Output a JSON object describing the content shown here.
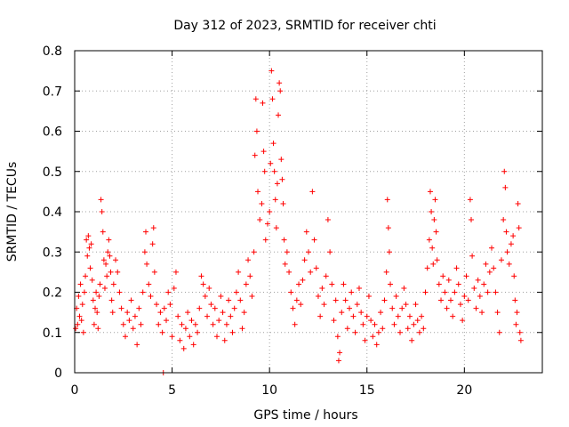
{
  "chart_data": {
    "type": "scatter",
    "title": "Day 312 of 2023, SRMTID for receiver chti",
    "xlabel": "GPS time / hours",
    "ylabel": "SRMTID / TECUs",
    "xlim": [
      0,
      24
    ],
    "ylim": [
      0,
      0.8
    ],
    "xticks": [
      0,
      5,
      10,
      15,
      20
    ],
    "xtick_labels": [
      "0",
      "5",
      "10",
      "15",
      "20"
    ],
    "yticks": [
      0,
      0.1,
      0.2,
      0.3,
      0.4,
      0.5,
      0.6,
      0.7,
      0.8
    ],
    "ytick_labels": [
      "0",
      "0.1",
      "0.2",
      "0.3",
      "0.4",
      "0.5",
      "0.6",
      "0.7",
      "0.8"
    ],
    "grid": true,
    "marker": "+",
    "color": "#ff0000",
    "series": [
      {
        "name": "SRMTID",
        "points": [
          [
            0.05,
            0.11
          ],
          [
            0.1,
            0.16
          ],
          [
            0.15,
            0.12
          ],
          [
            0.2,
            0.19
          ],
          [
            0.25,
            0.14
          ],
          [
            0.3,
            0.22
          ],
          [
            0.35,
            0.13
          ],
          [
            0.4,
            0.17
          ],
          [
            0.45,
            0.1
          ],
          [
            0.5,
            0.2
          ],
          [
            0.55,
            0.24
          ],
          [
            0.6,
            0.33
          ],
          [
            0.65,
            0.29
          ],
          [
            0.7,
            0.34
          ],
          [
            0.75,
            0.31
          ],
          [
            0.8,
            0.26
          ],
          [
            0.85,
            0.32
          ],
          [
            0.9,
            0.23
          ],
          [
            0.95,
            0.18
          ],
          [
            1.0,
            0.12
          ],
          [
            1.05,
            0.16
          ],
          [
            1.1,
            0.2
          ],
          [
            1.15,
            0.15
          ],
          [
            1.2,
            0.11
          ],
          [
            1.25,
            0.19
          ],
          [
            1.3,
            0.22
          ],
          [
            1.35,
            0.43
          ],
          [
            1.4,
            0.4
          ],
          [
            1.45,
            0.35
          ],
          [
            1.5,
            0.28
          ],
          [
            1.55,
            0.21
          ],
          [
            1.6,
            0.27
          ],
          [
            1.65,
            0.24
          ],
          [
            1.7,
            0.3
          ],
          [
            1.75,
            0.33
          ],
          [
            1.8,
            0.29
          ],
          [
            1.85,
            0.25
          ],
          [
            1.9,
            0.18
          ],
          [
            1.95,
            0.15
          ],
          [
            2.0,
            0.22
          ],
          [
            2.1,
            0.28
          ],
          [
            2.2,
            0.25
          ],
          [
            2.3,
            0.2
          ],
          [
            2.4,
            0.16
          ],
          [
            2.5,
            0.12
          ],
          [
            2.6,
            0.09
          ],
          [
            2.7,
            0.15
          ],
          [
            2.8,
            0.13
          ],
          [
            2.9,
            0.18
          ],
          [
            3.0,
            0.11
          ],
          [
            3.1,
            0.14
          ],
          [
            3.2,
            0.07
          ],
          [
            3.3,
            0.16
          ],
          [
            3.4,
            0.12
          ],
          [
            3.5,
            0.2
          ],
          [
            3.6,
            0.3
          ],
          [
            3.65,
            0.35
          ],
          [
            3.7,
            0.27
          ],
          [
            3.8,
            0.22
          ],
          [
            3.9,
            0.19
          ],
          [
            4.0,
            0.32
          ],
          [
            4.05,
            0.36
          ],
          [
            4.1,
            0.25
          ],
          [
            4.2,
            0.17
          ],
          [
            4.3,
            0.12
          ],
          [
            4.4,
            0.15
          ],
          [
            4.5,
            0.1
          ],
          [
            4.55,
            0.0
          ],
          [
            4.6,
            0.16
          ],
          [
            4.7,
            0.13
          ],
          [
            4.8,
            0.2
          ],
          [
            4.9,
            0.17
          ],
          [
            5.0,
            0.09
          ],
          [
            5.1,
            0.21
          ],
          [
            5.2,
            0.25
          ],
          [
            5.3,
            0.14
          ],
          [
            5.4,
            0.08
          ],
          [
            5.5,
            0.12
          ],
          [
            5.6,
            0.06
          ],
          [
            5.7,
            0.11
          ],
          [
            5.8,
            0.15
          ],
          [
            5.9,
            0.09
          ],
          [
            6.0,
            0.13
          ],
          [
            6.1,
            0.07
          ],
          [
            6.2,
            0.12
          ],
          [
            6.3,
            0.1
          ],
          [
            6.4,
            0.16
          ],
          [
            6.5,
            0.24
          ],
          [
            6.6,
            0.22
          ],
          [
            6.7,
            0.19
          ],
          [
            6.8,
            0.14
          ],
          [
            6.9,
            0.21
          ],
          [
            7.0,
            0.17
          ],
          [
            7.1,
            0.12
          ],
          [
            7.2,
            0.16
          ],
          [
            7.3,
            0.09
          ],
          [
            7.4,
            0.13
          ],
          [
            7.5,
            0.19
          ],
          [
            7.6,
            0.15
          ],
          [
            7.7,
            0.08
          ],
          [
            7.8,
            0.12
          ],
          [
            7.9,
            0.18
          ],
          [
            8.0,
            0.14
          ],
          [
            8.1,
            0.1
          ],
          [
            8.2,
            0.16
          ],
          [
            8.3,
            0.2
          ],
          [
            8.4,
            0.25
          ],
          [
            8.5,
            0.18
          ],
          [
            8.6,
            0.11
          ],
          [
            8.7,
            0.15
          ],
          [
            8.8,
            0.22
          ],
          [
            8.9,
            0.28
          ],
          [
            9.0,
            0.24
          ],
          [
            9.1,
            0.19
          ],
          [
            9.2,
            0.3
          ],
          [
            9.25,
            0.54
          ],
          [
            9.3,
            0.68
          ],
          [
            9.35,
            0.6
          ],
          [
            9.4,
            0.45
          ],
          [
            9.5,
            0.38
          ],
          [
            9.6,
            0.42
          ],
          [
            9.65,
            0.67
          ],
          [
            9.7,
            0.55
          ],
          [
            9.75,
            0.5
          ],
          [
            9.8,
            0.33
          ],
          [
            9.9,
            0.37
          ],
          [
            10.0,
            0.4
          ],
          [
            10.05,
            0.52
          ],
          [
            10.1,
            0.75
          ],
          [
            10.15,
            0.68
          ],
          [
            10.2,
            0.57
          ],
          [
            10.25,
            0.5
          ],
          [
            10.3,
            0.43
          ],
          [
            10.35,
            0.36
          ],
          [
            10.4,
            0.47
          ],
          [
            10.45,
            0.64
          ],
          [
            10.5,
            0.72
          ],
          [
            10.55,
            0.7
          ],
          [
            10.6,
            0.53
          ],
          [
            10.65,
            0.48
          ],
          [
            10.7,
            0.42
          ],
          [
            10.75,
            0.33
          ],
          [
            10.8,
            0.27
          ],
          [
            10.9,
            0.3
          ],
          [
            11.0,
            0.25
          ],
          [
            11.1,
            0.2
          ],
          [
            11.2,
            0.16
          ],
          [
            11.3,
            0.12
          ],
          [
            11.4,
            0.18
          ],
          [
            11.5,
            0.22
          ],
          [
            11.6,
            0.17
          ],
          [
            11.7,
            0.23
          ],
          [
            11.8,
            0.28
          ],
          [
            11.9,
            0.35
          ],
          [
            12.0,
            0.3
          ],
          [
            12.1,
            0.25
          ],
          [
            12.2,
            0.45
          ],
          [
            12.3,
            0.33
          ],
          [
            12.4,
            0.26
          ],
          [
            12.5,
            0.19
          ],
          [
            12.6,
            0.14
          ],
          [
            12.7,
            0.21
          ],
          [
            12.8,
            0.17
          ],
          [
            12.9,
            0.24
          ],
          [
            13.0,
            0.38
          ],
          [
            13.1,
            0.3
          ],
          [
            13.2,
            0.22
          ],
          [
            13.3,
            0.13
          ],
          [
            13.4,
            0.18
          ],
          [
            13.5,
            0.09
          ],
          [
            13.55,
            0.03
          ],
          [
            13.6,
            0.05
          ],
          [
            13.7,
            0.15
          ],
          [
            13.8,
            0.22
          ],
          [
            13.9,
            0.18
          ],
          [
            14.0,
            0.11
          ],
          [
            14.1,
            0.16
          ],
          [
            14.2,
            0.2
          ],
          [
            14.3,
            0.14
          ],
          [
            14.4,
            0.1
          ],
          [
            14.5,
            0.17
          ],
          [
            14.6,
            0.21
          ],
          [
            14.7,
            0.15
          ],
          [
            14.8,
            0.12
          ],
          [
            14.9,
            0.08
          ],
          [
            15.0,
            0.14
          ],
          [
            15.1,
            0.19
          ],
          [
            15.2,
            0.13
          ],
          [
            15.3,
            0.09
          ],
          [
            15.4,
            0.12
          ],
          [
            15.5,
            0.07
          ],
          [
            15.6,
            0.1
          ],
          [
            15.7,
            0.15
          ],
          [
            15.8,
            0.11
          ],
          [
            15.9,
            0.18
          ],
          [
            16.0,
            0.25
          ],
          [
            16.05,
            0.43
          ],
          [
            16.1,
            0.36
          ],
          [
            16.15,
            0.3
          ],
          [
            16.2,
            0.22
          ],
          [
            16.3,
            0.16
          ],
          [
            16.4,
            0.12
          ],
          [
            16.5,
            0.19
          ],
          [
            16.6,
            0.14
          ],
          [
            16.7,
            0.1
          ],
          [
            16.8,
            0.16
          ],
          [
            16.9,
            0.21
          ],
          [
            17.0,
            0.17
          ],
          [
            17.1,
            0.11
          ],
          [
            17.2,
            0.14
          ],
          [
            17.3,
            0.08
          ],
          [
            17.4,
            0.12
          ],
          [
            17.5,
            0.17
          ],
          [
            17.6,
            0.13
          ],
          [
            17.7,
            0.1
          ],
          [
            17.8,
            0.14
          ],
          [
            17.9,
            0.11
          ],
          [
            18.0,
            0.2
          ],
          [
            18.1,
            0.26
          ],
          [
            18.2,
            0.33
          ],
          [
            18.25,
            0.45
          ],
          [
            18.3,
            0.4
          ],
          [
            18.35,
            0.31
          ],
          [
            18.4,
            0.27
          ],
          [
            18.45,
            0.38
          ],
          [
            18.5,
            0.43
          ],
          [
            18.55,
            0.35
          ],
          [
            18.6,
            0.28
          ],
          [
            18.7,
            0.22
          ],
          [
            18.8,
            0.18
          ],
          [
            18.9,
            0.24
          ],
          [
            19.0,
            0.2
          ],
          [
            19.1,
            0.16
          ],
          [
            19.2,
            0.23
          ],
          [
            19.3,
            0.18
          ],
          [
            19.4,
            0.14
          ],
          [
            19.5,
            0.2
          ],
          [
            19.6,
            0.26
          ],
          [
            19.7,
            0.22
          ],
          [
            19.8,
            0.17
          ],
          [
            19.9,
            0.13
          ],
          [
            20.0,
            0.19
          ],
          [
            20.1,
            0.24
          ],
          [
            20.2,
            0.18
          ],
          [
            20.3,
            0.43
          ],
          [
            20.35,
            0.38
          ],
          [
            20.4,
            0.29
          ],
          [
            20.5,
            0.21
          ],
          [
            20.6,
            0.16
          ],
          [
            20.7,
            0.23
          ],
          [
            20.8,
            0.19
          ],
          [
            20.9,
            0.15
          ],
          [
            21.0,
            0.22
          ],
          [
            21.1,
            0.27
          ],
          [
            21.2,
            0.2
          ],
          [
            21.3,
            0.25
          ],
          [
            21.4,
            0.31
          ],
          [
            21.5,
            0.26
          ],
          [
            21.6,
            0.2
          ],
          [
            21.7,
            0.15
          ],
          [
            21.8,
            0.1
          ],
          [
            21.9,
            0.28
          ],
          [
            22.0,
            0.38
          ],
          [
            22.05,
            0.5
          ],
          [
            22.1,
            0.46
          ],
          [
            22.15,
            0.35
          ],
          [
            22.2,
            0.3
          ],
          [
            22.3,
            0.27
          ],
          [
            22.4,
            0.32
          ],
          [
            22.5,
            0.34
          ],
          [
            22.55,
            0.24
          ],
          [
            22.6,
            0.18
          ],
          [
            22.65,
            0.12
          ],
          [
            22.7,
            0.15
          ],
          [
            22.75,
            0.42
          ],
          [
            22.8,
            0.36
          ],
          [
            22.85,
            0.1
          ],
          [
            22.9,
            0.08
          ]
        ]
      }
    ]
  }
}
